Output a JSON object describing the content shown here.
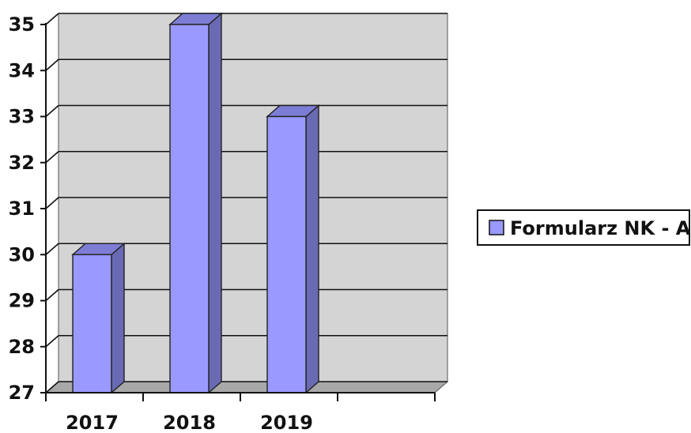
{
  "chart_data": {
    "type": "bar",
    "title": "",
    "xlabel": "",
    "ylabel": "",
    "categories": [
      "2017",
      "2018",
      "2019"
    ],
    "series": [
      {
        "name": "Formularz NK - A",
        "values": [
          30,
          35,
          33
        ],
        "color": "#9999ff"
      }
    ],
    "ylim": [
      27,
      35
    ],
    "yticks": [
      "27",
      "28",
      "29",
      "30",
      "31",
      "32",
      "33",
      "34",
      "35"
    ],
    "grid": true,
    "legend": "right",
    "style": "3d",
    "colors": {
      "wall": "#d4d4d4",
      "floor": "#a8a8a8",
      "bar_front": "#9999ff",
      "bar_top": "#7d7dd6",
      "bar_side": "#6a6ab4"
    }
  }
}
